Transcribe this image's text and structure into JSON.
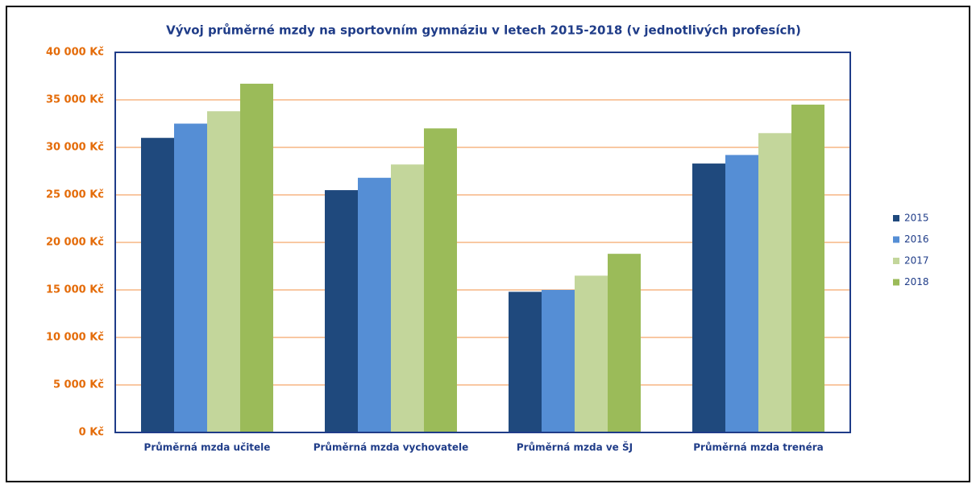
{
  "chart_data": {
    "type": "bar",
    "title": "Vývoj průměrné mzdy na sportovním gymnáziu v letech 2015-2018 (v jednotlivých profesích)",
    "categories": [
      "Průměrná mzda učitele",
      "Průměrná mzda vychovatele",
      "Průměrná mzda ve ŠJ",
      "Průměrná mzda trenéra"
    ],
    "series": [
      {
        "name": "2015",
        "color": "#1f497d",
        "values": [
          31000,
          25500,
          14800,
          28300
        ]
      },
      {
        "name": "2016",
        "color": "#558ed5",
        "values": [
          32500,
          26800,
          15000,
          29200
        ]
      },
      {
        "name": "2017",
        "color": "#c3d69b",
        "values": [
          33800,
          28200,
          16500,
          31500
        ]
      },
      {
        "name": "2018",
        "color": "#9bbb59",
        "values": [
          36700,
          32000,
          18800,
          34500
        ]
      }
    ],
    "ylim": [
      0,
      40000
    ],
    "yticks": [
      {
        "value": 0,
        "label": "0 Kč"
      },
      {
        "value": 5000,
        "label": "5 000 Kč"
      },
      {
        "value": 10000,
        "label": "10 000 Kč"
      },
      {
        "value": 15000,
        "label": "15 000 Kč"
      },
      {
        "value": 20000,
        "label": "20 000 Kč"
      },
      {
        "value": 25000,
        "label": "25 000 Kč"
      },
      {
        "value": 30000,
        "label": "30 000 Kč"
      },
      {
        "value": 35000,
        "label": "35 000 Kč"
      },
      {
        "value": 40000,
        "label": "40 000 Kč"
      }
    ],
    "grid": true,
    "legend": "right"
  }
}
